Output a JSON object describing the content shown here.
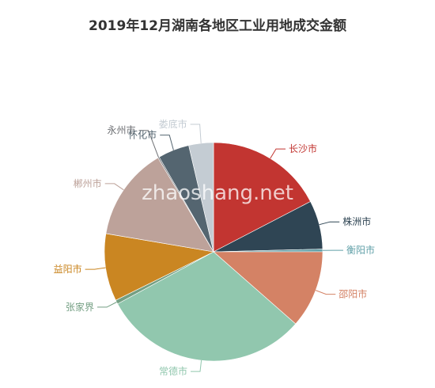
{
  "chart_data": {
    "type": "pie",
    "title": "2019年12月湖南各地区工业用地成交金额",
    "slices": [
      {
        "label": "长沙市",
        "value": 17.6,
        "color": "#c23531"
      },
      {
        "label": "株洲市",
        "value": 7.3,
        "color": "#2f4554"
      },
      {
        "label": "衡阳市",
        "value": 0.4,
        "color": "#61a0a8"
      },
      {
        "label": "邵阳市",
        "value": 11.6,
        "color": "#d48265"
      },
      {
        "label": "常德市",
        "value": 31.0,
        "color": "#91c7ae"
      },
      {
        "label": "张家界",
        "value": 0.6,
        "color": "#749f83"
      },
      {
        "label": "益阳市",
        "value": 10.1,
        "color": "#ca8622"
      },
      {
        "label": "郴州市",
        "value": 14.0,
        "color": "#bda29a"
      },
      {
        "label": "永州市",
        "value": 0.2,
        "color": "#6e7074"
      },
      {
        "label": "怀化市",
        "value": 4.7,
        "color": "#546570"
      },
      {
        "label": "娄底市",
        "value": 3.7,
        "color": "#c4ccd3"
      }
    ]
  },
  "watermark": "zhaoshang.net"
}
